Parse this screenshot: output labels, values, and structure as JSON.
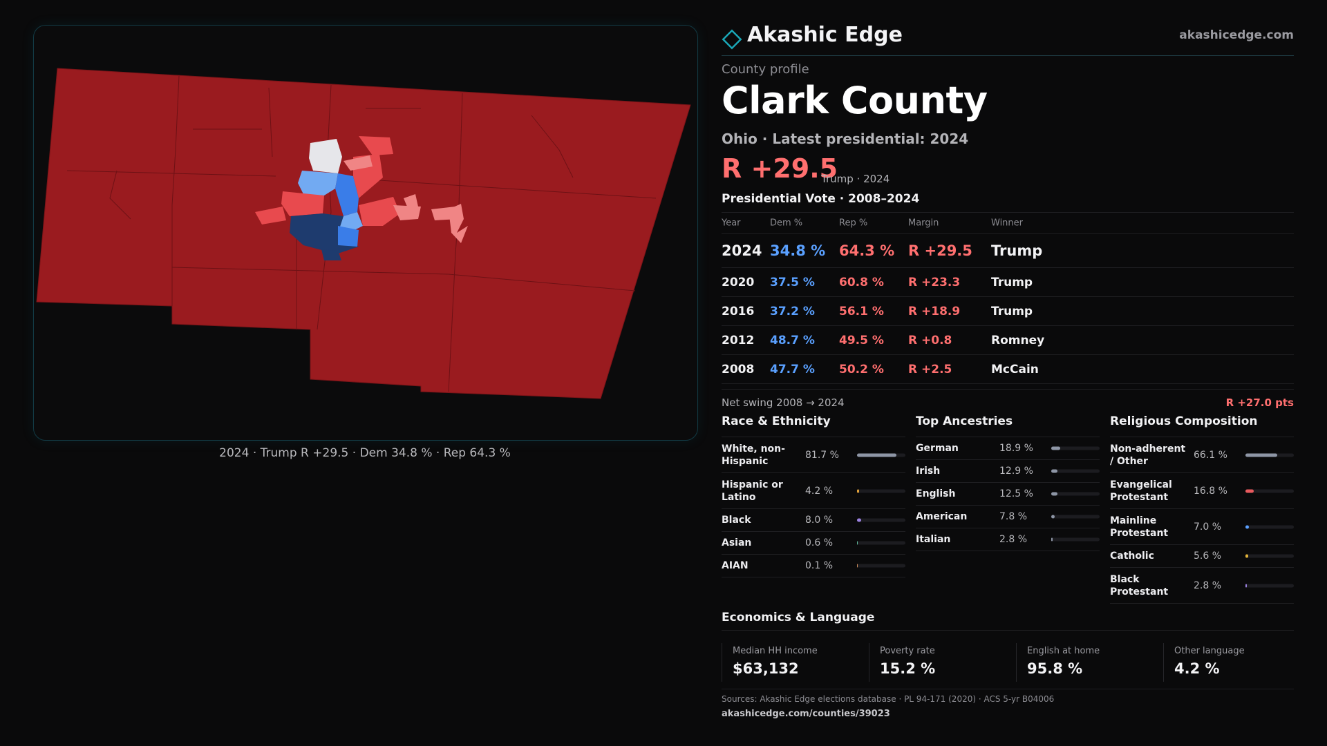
{
  "map": {
    "caption": "2024 · Trump R +29.5 · Dem 34.8 % · Rep 64.3 %",
    "colors": {
      "solid_rep": "#9a1b1f",
      "lean_rep": "#e84a4e",
      "light_rep": "#f08585",
      "tossup": "#e6e6ea",
      "light_dem": "#72aaf2",
      "lean_dem": "#3a7de8",
      "solid_dem": "#1e3b6e"
    }
  },
  "brand": {
    "name": "Akashic Edge",
    "url": "akashicedge.com"
  },
  "kicker": "County profile",
  "county": "Clark County",
  "subtitle": "Ohio · Latest presidential: 2024",
  "margin": {
    "value": "R +29.5",
    "note": "Trump · 2024"
  },
  "vote_table": {
    "title": "Presidential Vote · 2008–2024",
    "headers": [
      "Year",
      "Dem %",
      "Rep %",
      "Margin",
      "Winner"
    ],
    "rows": [
      {
        "year": "2024",
        "dem": "34.8 %",
        "rep": "64.3 %",
        "margin": "R +29.5",
        "winner": "Trump"
      },
      {
        "year": "2020",
        "dem": "37.5 %",
        "rep": "60.8 %",
        "margin": "R +23.3",
        "winner": "Trump"
      },
      {
        "year": "2016",
        "dem": "37.2 %",
        "rep": "56.1 %",
        "margin": "R +18.9",
        "winner": "Trump"
      },
      {
        "year": "2012",
        "dem": "48.7 %",
        "rep": "49.5 %",
        "margin": "R +0.8",
        "winner": "Romney"
      },
      {
        "year": "2008",
        "dem": "47.7 %",
        "rep": "50.2 %",
        "margin": "R +2.5",
        "winner": "McCain"
      }
    ]
  },
  "swing": {
    "label": "Net swing 2008 → 2024",
    "value": "R +27.0 pts"
  },
  "race": {
    "title": "Race & Ethnicity",
    "items": [
      {
        "label": "White, non-Hispanic",
        "value": "81.7 %",
        "pct": 81.7,
        "color": "#8e96a6"
      },
      {
        "label": "Hispanic or Latino",
        "value": "4.2 %",
        "pct": 4.2,
        "color": "#e0a13a"
      },
      {
        "label": "Black",
        "value": "8.0 %",
        "pct": 8.0,
        "color": "#9b82e0"
      },
      {
        "label": "Asian",
        "value": "0.6 %",
        "pct": 0.6,
        "color": "#5fb89a"
      },
      {
        "label": "AIAN",
        "value": "0.1 %",
        "pct": 0.1,
        "color": "#c98a5a"
      }
    ]
  },
  "ancestry": {
    "title": "Top Ancestries",
    "items": [
      {
        "label": "German",
        "value": "18.9 %",
        "pct": 18.9,
        "color": "#8e96a6"
      },
      {
        "label": "Irish",
        "value": "12.9 %",
        "pct": 12.9,
        "color": "#8e96a6"
      },
      {
        "label": "English",
        "value": "12.5 %",
        "pct": 12.5,
        "color": "#8e96a6"
      },
      {
        "label": "American",
        "value": "7.8 %",
        "pct": 7.8,
        "color": "#8e96a6"
      },
      {
        "label": "Italian",
        "value": "2.8 %",
        "pct": 2.8,
        "color": "#8e96a6"
      }
    ]
  },
  "religion": {
    "title": "Religious Composition",
    "items": [
      {
        "label": "Non-adherent / Other",
        "value": "66.1 %",
        "pct": 66.1,
        "color": "#8e96a6"
      },
      {
        "label": "Evangelical Protestant",
        "value": "16.8 %",
        "pct": 16.8,
        "color": "#e85a5e"
      },
      {
        "label": "Mainline Protestant",
        "value": "7.0 %",
        "pct": 7.0,
        "color": "#5aa0ff"
      },
      {
        "label": "Catholic",
        "value": "5.6 %",
        "pct": 5.6,
        "color": "#e0b23a"
      },
      {
        "label": "Black Protestant",
        "value": "2.8 %",
        "pct": 2.8,
        "color": "#9b82e0"
      }
    ]
  },
  "economics": {
    "title": "Economics & Language",
    "items": [
      {
        "label": "Median HH income",
        "value": "$63,132"
      },
      {
        "label": "Poverty rate",
        "value": "15.2 %"
      },
      {
        "label": "English at home",
        "value": "95.8 %"
      },
      {
        "label": "Other language",
        "value": "4.2 %"
      }
    ]
  },
  "sources": "Sources: Akashic Edge elections database · PL 94-171 (2020) · ACS 5-yr B04006",
  "link": "akashicedge.com/counties/39023"
}
